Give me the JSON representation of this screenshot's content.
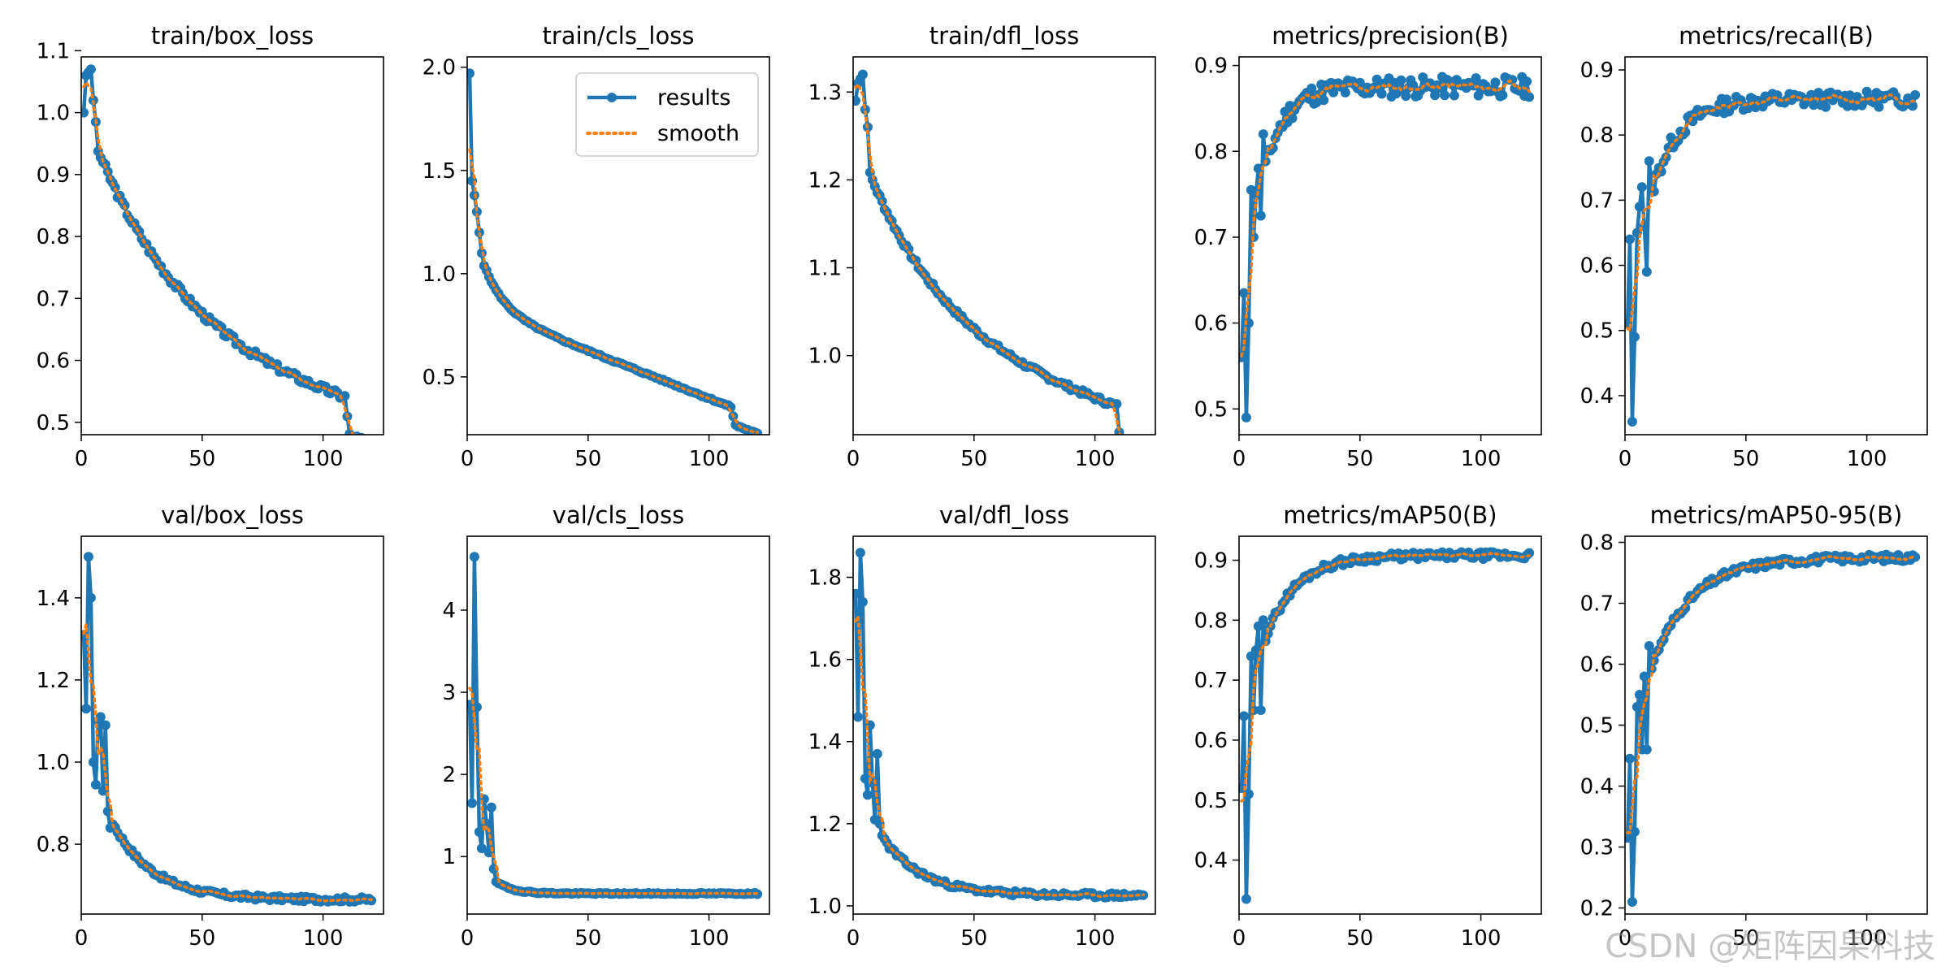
{
  "figure": {
    "watermark": "CSDN @矩阵因果科技"
  },
  "legend": {
    "results": "results",
    "smooth": "smooth"
  },
  "colors": {
    "results": "#1f77b4",
    "smooth": "#ff7f0e",
    "axis": "#000000"
  },
  "chart_data": [
    {
      "type": "line",
      "title": "train/box_loss",
      "xlabel": "",
      "ylabel": "",
      "xlim": [
        0,
        125
      ],
      "ylim": [
        0.48,
        1.09
      ],
      "xticks": [
        0,
        50,
        100
      ],
      "yticks": [
        0.5,
        0.6,
        0.7,
        0.8,
        0.9,
        1.0,
        1.1
      ],
      "yticklabels": [
        "0.5",
        "0.6",
        "0.7",
        "0.8",
        "0.9",
        "1.0",
        "1.1"
      ],
      "series": [
        {
          "name": "results",
          "kind": "exp",
          "n": 120,
          "start": 1.0,
          "end": 0.505,
          "k": 0.025,
          "tail": 0.83,
          "breakAt": 110,
          "breakDrop": 0.06,
          "jitter": 0.006,
          "seed": 3,
          "fixed": [
            [
              1,
              1.0
            ],
            [
              2,
              1.06
            ],
            [
              3,
              1.065
            ],
            [
              4,
              1.07
            ],
            [
              5,
              1.02
            ],
            [
              6,
              0.985
            ]
          ]
        }
      ]
    },
    {
      "type": "line",
      "title": "train/cls_loss",
      "xlabel": "",
      "ylabel": "",
      "xlim": [
        0,
        125
      ],
      "ylim": [
        0.22,
        2.05
      ],
      "xticks": [
        0,
        50,
        100
      ],
      "yticks": [
        0.5,
        1.0,
        1.5,
        2.0
      ],
      "yticklabels": [
        "0.5",
        "1.0",
        "1.5",
        "2.0"
      ],
      "legend": "upper right",
      "series": [
        {
          "name": "results",
          "kind": "exp",
          "n": 120,
          "start": 1.3,
          "end": 0.3,
          "k": 0.12,
          "tail": 0.45,
          "breakAt": 110,
          "breakDrop": 0.08,
          "jitter": 0.004,
          "seed": 5,
          "fixed": [
            [
              1,
              1.97
            ],
            [
              2,
              1.45
            ],
            [
              3,
              1.38
            ],
            [
              4,
              1.3
            ],
            [
              5,
              1.2
            ],
            [
              6,
              1.1
            ]
          ]
        }
      ]
    },
    {
      "type": "line",
      "title": "train/dfl_loss",
      "xlabel": "",
      "ylabel": "",
      "xlim": [
        0,
        125
      ],
      "ylim": [
        0.91,
        1.34
      ],
      "xticks": [
        0,
        50,
        100
      ],
      "yticks": [
        1.0,
        1.1,
        1.2,
        1.3
      ],
      "yticklabels": [
        "1.0",
        "1.1",
        "1.2",
        "1.3"
      ],
      "series": [
        {
          "name": "results",
          "kind": "exp",
          "n": 120,
          "start": 1.25,
          "end": 0.925,
          "k": 0.03,
          "tail": 0.74,
          "breakAt": 110,
          "breakDrop": 0.055,
          "jitter": 0.003,
          "seed": 7,
          "fixed": [
            [
              1,
              1.29
            ],
            [
              2,
              1.31
            ],
            [
              3,
              1.315
            ],
            [
              4,
              1.32
            ],
            [
              5,
              1.28
            ],
            [
              6,
              1.26
            ]
          ]
        }
      ]
    },
    {
      "type": "line",
      "title": "metrics/precision(B)",
      "xlabel": "",
      "ylabel": "",
      "xlim": [
        0,
        125
      ],
      "ylim": [
        0.47,
        0.91
      ],
      "xticks": [
        0,
        50,
        100
      ],
      "yticks": [
        0.5,
        0.6,
        0.7,
        0.8,
        0.9
      ],
      "yticklabels": [
        "0.5",
        "0.6",
        "0.7",
        "0.8",
        "0.9"
      ],
      "series": [
        {
          "name": "results",
          "kind": "rise",
          "n": 120,
          "start": 0.56,
          "end": 0.875,
          "k": 0.12,
          "jitter": 0.012,
          "seed": 11,
          "fixed": [
            [
              1,
              0.56
            ],
            [
              2,
              0.635
            ],
            [
              3,
              0.49
            ],
            [
              4,
              0.6
            ],
            [
              5,
              0.755
            ],
            [
              6,
              0.7
            ],
            [
              7,
              0.75
            ],
            [
              8,
              0.78
            ],
            [
              9,
              0.725
            ],
            [
              10,
              0.82
            ]
          ]
        }
      ]
    },
    {
      "type": "line",
      "title": "metrics/recall(B)",
      "xlabel": "",
      "ylabel": "",
      "xlim": [
        0,
        125
      ],
      "ylim": [
        0.34,
        0.92
      ],
      "xticks": [
        0,
        50,
        100
      ],
      "yticks": [
        0.4,
        0.5,
        0.6,
        0.7,
        0.8,
        0.9
      ],
      "yticklabels": [
        "0.4",
        "0.5",
        "0.6",
        "0.7",
        "0.8",
        "0.9"
      ],
      "series": [
        {
          "name": "results",
          "kind": "rise",
          "n": 120,
          "start": 0.5,
          "end": 0.855,
          "k": 0.09,
          "jitter": 0.012,
          "seed": 13,
          "fixed": [
            [
              1,
              0.51
            ],
            [
              2,
              0.64
            ],
            [
              3,
              0.36
            ],
            [
              4,
              0.49
            ],
            [
              5,
              0.65
            ],
            [
              6,
              0.69
            ],
            [
              7,
              0.72
            ],
            [
              8,
              0.66
            ],
            [
              9,
              0.59
            ],
            [
              10,
              0.76
            ]
          ]
        }
      ]
    },
    {
      "type": "line",
      "title": "val/box_loss",
      "xlabel": "",
      "ylabel": "",
      "xlim": [
        0,
        125
      ],
      "ylim": [
        0.63,
        1.55
      ],
      "xticks": [
        0,
        50,
        100
      ],
      "yticks": [
        0.8,
        1.0,
        1.2,
        1.4
      ],
      "yticklabels": [
        "0.8",
        "1.0",
        "1.2",
        "1.4"
      ],
      "series": [
        {
          "name": "results",
          "kind": "exp",
          "n": 120,
          "start": 1.05,
          "end": 0.665,
          "k": 0.06,
          "jitter": 0.006,
          "seed": 17,
          "fixed": [
            [
              1,
              1.31
            ],
            [
              2,
              1.13
            ],
            [
              3,
              1.5
            ],
            [
              4,
              1.4
            ],
            [
              5,
              1.0
            ],
            [
              6,
              0.945
            ],
            [
              7,
              1.1
            ],
            [
              8,
              1.11
            ],
            [
              9,
              0.93
            ],
            [
              10,
              1.09
            ],
            [
              11,
              0.88
            ],
            [
              12,
              0.84
            ]
          ]
        }
      ]
    },
    {
      "type": "line",
      "title": "val/cls_loss",
      "xlabel": "",
      "ylabel": "",
      "xlim": [
        0,
        125
      ],
      "ylim": [
        0.3,
        4.9
      ],
      "xticks": [
        0,
        50,
        100
      ],
      "yticks": [
        1,
        2,
        3,
        4
      ],
      "yticklabels": [
        "1",
        "2",
        "3",
        "4"
      ],
      "series": [
        {
          "name": "results",
          "kind": "exp",
          "n": 120,
          "start": 1.3,
          "end": 0.55,
          "k": 0.15,
          "jitter": 0.008,
          "seed": 19,
          "fixed": [
            [
              1,
              2.85
            ],
            [
              2,
              1.65
            ],
            [
              3,
              4.65
            ],
            [
              4,
              2.82
            ],
            [
              5,
              1.3
            ],
            [
              6,
              1.1
            ],
            [
              7,
              1.7
            ],
            [
              8,
              1.4
            ],
            [
              9,
              1.05
            ],
            [
              10,
              1.6
            ],
            [
              11,
              0.85
            ]
          ]
        }
      ]
    },
    {
      "type": "line",
      "title": "val/dfl_loss",
      "xlabel": "",
      "ylabel": "",
      "xlim": [
        0,
        125
      ],
      "ylim": [
        0.98,
        1.9
      ],
      "xticks": [
        0,
        50,
        100
      ],
      "yticks": [
        1.0,
        1.2,
        1.4,
        1.6,
        1.8
      ],
      "yticklabels": [
        "1.0",
        "1.2",
        "1.4",
        "1.6",
        "1.8"
      ],
      "series": [
        {
          "name": "results",
          "kind": "exp",
          "n": 120,
          "start": 1.3,
          "end": 1.025,
          "k": 0.06,
          "jitter": 0.006,
          "seed": 23,
          "fixed": [
            [
              1,
              1.76
            ],
            [
              2,
              1.46
            ],
            [
              3,
              1.86
            ],
            [
              4,
              1.74
            ],
            [
              5,
              1.31
            ],
            [
              6,
              1.27
            ],
            [
              7,
              1.44
            ],
            [
              8,
              1.3
            ],
            [
              9,
              1.21
            ],
            [
              10,
              1.37
            ],
            [
              11,
              1.2
            ]
          ]
        }
      ]
    },
    {
      "type": "line",
      "title": "metrics/mAP50(B)",
      "xlabel": "",
      "ylabel": "",
      "xlim": [
        0,
        125
      ],
      "ylim": [
        0.31,
        0.94
      ],
      "xticks": [
        0,
        50,
        100
      ],
      "yticks": [
        0.4,
        0.5,
        0.6,
        0.7,
        0.8,
        0.9
      ],
      "yticklabels": [
        "0.4",
        "0.5",
        "0.6",
        "0.7",
        "0.8",
        "0.9"
      ],
      "series": [
        {
          "name": "results",
          "kind": "rise",
          "n": 120,
          "start": 0.6,
          "end": 0.908,
          "k": 0.08,
          "jitter": 0.006,
          "seed": 29,
          "fixed": [
            [
              1,
              0.52
            ],
            [
              2,
              0.64
            ],
            [
              3,
              0.335
            ],
            [
              4,
              0.51
            ],
            [
              5,
              0.74
            ],
            [
              6,
              0.65
            ],
            [
              7,
              0.75
            ],
            [
              8,
              0.79
            ],
            [
              9,
              0.65
            ],
            [
              10,
              0.8
            ]
          ]
        }
      ]
    },
    {
      "type": "line",
      "title": "metrics/mAP50-95(B)",
      "xlabel": "",
      "ylabel": "",
      "xlim": [
        0,
        125
      ],
      "ylim": [
        0.19,
        0.81
      ],
      "xticks": [
        0,
        50,
        100
      ],
      "yticks": [
        0.2,
        0.3,
        0.4,
        0.5,
        0.6,
        0.7,
        0.8
      ],
      "yticklabels": [
        "0.2",
        "0.3",
        "0.4",
        "0.5",
        "0.6",
        "0.7",
        "0.8"
      ],
      "series": [
        {
          "name": "results",
          "kind": "rise",
          "n": 120,
          "start": 0.45,
          "end": 0.775,
          "k": 0.06,
          "jitter": 0.006,
          "seed": 31,
          "fixed": [
            [
              1,
              0.315
            ],
            [
              2,
              0.445
            ],
            [
              3,
              0.21
            ],
            [
              4,
              0.325
            ],
            [
              5,
              0.53
            ],
            [
              6,
              0.55
            ],
            [
              7,
              0.46
            ],
            [
              8,
              0.58
            ],
            [
              9,
              0.46
            ],
            [
              10,
              0.63
            ]
          ]
        }
      ]
    }
  ]
}
